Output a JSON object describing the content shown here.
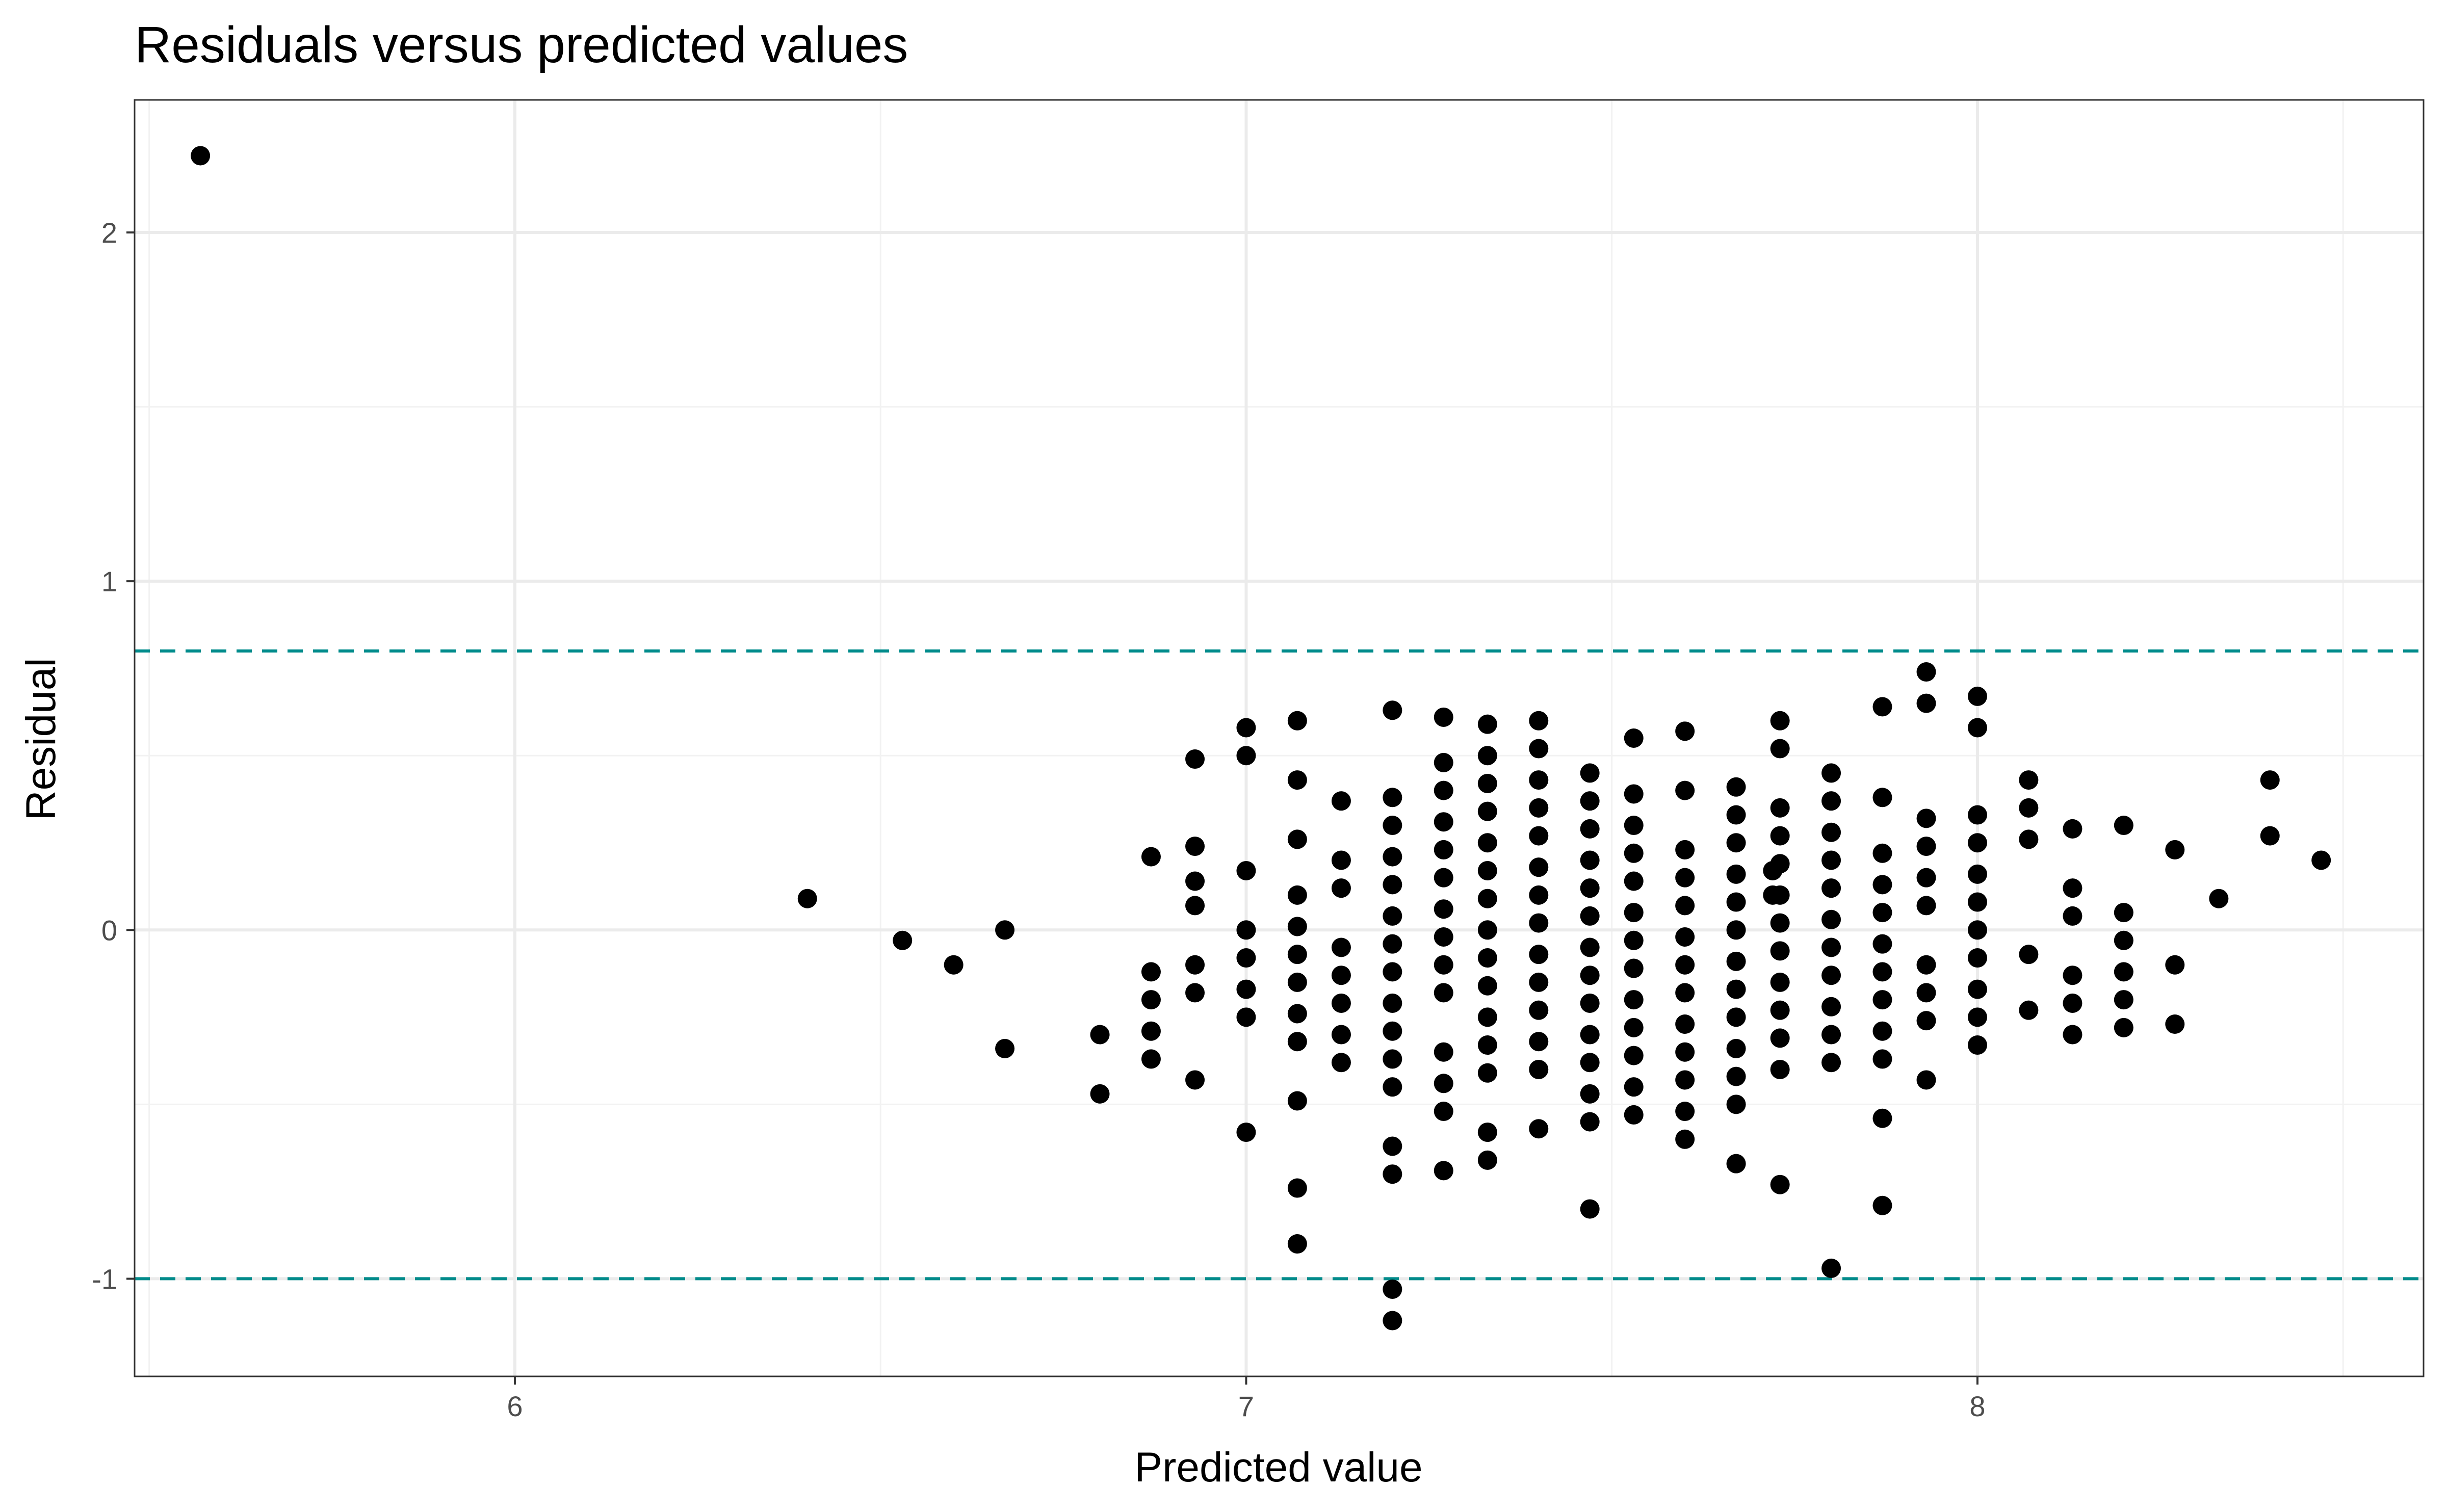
{
  "chart_data": {
    "type": "scatter",
    "title": "Residuals versus predicted values",
    "xlabel": "Predicted value",
    "ylabel": "Residual",
    "xlim": [
      5.48,
      8.61
    ],
    "ylim": [
      -1.28,
      2.38
    ],
    "x_ticks": [
      6,
      7,
      8
    ],
    "x_tick_labels": [
      "6",
      "7",
      "8"
    ],
    "y_ticks": [
      -1,
      0,
      1,
      2
    ],
    "y_tick_labels": [
      "-1",
      "0",
      "1",
      "2"
    ],
    "grid": true,
    "reference_lines": [
      {
        "y": 0.8,
        "style": "dashed",
        "color": "#008b8b"
      },
      {
        "y": -1.0,
        "style": "dashed",
        "color": "#008b8b"
      }
    ],
    "point_color": "#000000",
    "points": [
      [
        5.57,
        2.22
      ],
      [
        6.4,
        0.09
      ],
      [
        6.53,
        -0.03
      ],
      [
        6.6,
        -0.1
      ],
      [
        6.67,
        0.0
      ],
      [
        6.67,
        -0.34
      ],
      [
        6.8,
        -0.3
      ],
      [
        6.8,
        -0.47
      ],
      [
        6.87,
        0.21
      ],
      [
        6.87,
        -0.12
      ],
      [
        6.87,
        -0.2
      ],
      [
        6.87,
        -0.29
      ],
      [
        6.87,
        -0.37
      ],
      [
        6.93,
        0.49
      ],
      [
        6.93,
        0.24
      ],
      [
        6.93,
        0.14
      ],
      [
        6.93,
        0.07
      ],
      [
        6.93,
        -0.1
      ],
      [
        6.93,
        -0.18
      ],
      [
        6.93,
        -0.43
      ],
      [
        7.0,
        0.58
      ],
      [
        7.0,
        0.5
      ],
      [
        7.0,
        0.17
      ],
      [
        7.0,
        0.0
      ],
      [
        7.0,
        -0.08
      ],
      [
        7.0,
        -0.17
      ],
      [
        7.0,
        -0.25
      ],
      [
        7.0,
        -0.58
      ],
      [
        7.07,
        0.6
      ],
      [
        7.07,
        0.43
      ],
      [
        7.07,
        0.26
      ],
      [
        7.07,
        0.1
      ],
      [
        7.07,
        0.01
      ],
      [
        7.07,
        -0.07
      ],
      [
        7.07,
        -0.15
      ],
      [
        7.07,
        -0.24
      ],
      [
        7.07,
        -0.32
      ],
      [
        7.07,
        -0.49
      ],
      [
        7.07,
        -0.74
      ],
      [
        7.07,
        -0.9
      ],
      [
        7.13,
        0.37
      ],
      [
        7.13,
        0.2
      ],
      [
        7.13,
        0.12
      ],
      [
        7.13,
        -0.05
      ],
      [
        7.13,
        -0.13
      ],
      [
        7.13,
        -0.21
      ],
      [
        7.13,
        -0.3
      ],
      [
        7.13,
        -0.38
      ],
      [
        7.2,
        0.63
      ],
      [
        7.2,
        0.38
      ],
      [
        7.2,
        0.3
      ],
      [
        7.2,
        0.21
      ],
      [
        7.2,
        0.13
      ],
      [
        7.2,
        0.04
      ],
      [
        7.2,
        -0.04
      ],
      [
        7.2,
        -0.12
      ],
      [
        7.2,
        -0.21
      ],
      [
        7.2,
        -0.29
      ],
      [
        7.2,
        -0.37
      ],
      [
        7.2,
        -0.45
      ],
      [
        7.2,
        -0.62
      ],
      [
        7.2,
        -0.7
      ],
      [
        7.2,
        -1.03
      ],
      [
        7.2,
        -1.12
      ],
      [
        7.27,
        0.61
      ],
      [
        7.27,
        0.48
      ],
      [
        7.27,
        0.4
      ],
      [
        7.27,
        0.31
      ],
      [
        7.27,
        0.23
      ],
      [
        7.27,
        0.15
      ],
      [
        7.27,
        0.06
      ],
      [
        7.27,
        -0.02
      ],
      [
        7.27,
        -0.1
      ],
      [
        7.27,
        -0.18
      ],
      [
        7.27,
        -0.35
      ],
      [
        7.27,
        -0.44
      ],
      [
        7.27,
        -0.52
      ],
      [
        7.27,
        -0.69
      ],
      [
        7.33,
        0.59
      ],
      [
        7.33,
        0.5
      ],
      [
        7.33,
        0.42
      ],
      [
        7.33,
        0.34
      ],
      [
        7.33,
        0.25
      ],
      [
        7.33,
        0.17
      ],
      [
        7.33,
        0.09
      ],
      [
        7.33,
        0.0
      ],
      [
        7.33,
        -0.08
      ],
      [
        7.33,
        -0.16
      ],
      [
        7.33,
        -0.25
      ],
      [
        7.33,
        -0.33
      ],
      [
        7.33,
        -0.41
      ],
      [
        7.33,
        -0.58
      ],
      [
        7.33,
        -0.66
      ],
      [
        7.4,
        0.6
      ],
      [
        7.4,
        0.52
      ],
      [
        7.4,
        0.43
      ],
      [
        7.4,
        0.35
      ],
      [
        7.4,
        0.27
      ],
      [
        7.4,
        0.18
      ],
      [
        7.4,
        0.1
      ],
      [
        7.4,
        0.02
      ],
      [
        7.4,
        -0.07
      ],
      [
        7.4,
        -0.15
      ],
      [
        7.4,
        -0.23
      ],
      [
        7.4,
        -0.32
      ],
      [
        7.4,
        -0.4
      ],
      [
        7.4,
        -0.57
      ],
      [
        7.47,
        0.45
      ],
      [
        7.47,
        0.37
      ],
      [
        7.47,
        0.29
      ],
      [
        7.47,
        0.2
      ],
      [
        7.47,
        0.12
      ],
      [
        7.47,
        0.04
      ],
      [
        7.47,
        -0.05
      ],
      [
        7.47,
        -0.13
      ],
      [
        7.47,
        -0.21
      ],
      [
        7.47,
        -0.3
      ],
      [
        7.47,
        -0.38
      ],
      [
        7.47,
        -0.47
      ],
      [
        7.47,
        -0.55
      ],
      [
        7.47,
        -0.8
      ],
      [
        7.53,
        0.55
      ],
      [
        7.53,
        0.39
      ],
      [
        7.53,
        0.3
      ],
      [
        7.53,
        0.22
      ],
      [
        7.53,
        0.14
      ],
      [
        7.53,
        0.05
      ],
      [
        7.53,
        -0.03
      ],
      [
        7.53,
        -0.11
      ],
      [
        7.53,
        -0.2
      ],
      [
        7.53,
        -0.28
      ],
      [
        7.53,
        -0.36
      ],
      [
        7.53,
        -0.45
      ],
      [
        7.53,
        -0.53
      ],
      [
        7.6,
        0.57
      ],
      [
        7.6,
        0.4
      ],
      [
        7.6,
        0.23
      ],
      [
        7.6,
        0.15
      ],
      [
        7.6,
        0.07
      ],
      [
        7.6,
        -0.02
      ],
      [
        7.6,
        -0.1
      ],
      [
        7.6,
        -0.18
      ],
      [
        7.6,
        -0.27
      ],
      [
        7.6,
        -0.35
      ],
      [
        7.6,
        -0.43
      ],
      [
        7.6,
        -0.52
      ],
      [
        7.6,
        -0.6
      ],
      [
        7.67,
        0.41
      ],
      [
        7.67,
        0.33
      ],
      [
        7.67,
        0.25
      ],
      [
        7.67,
        0.16
      ],
      [
        7.67,
        0.08
      ],
      [
        7.67,
        0.0
      ],
      [
        7.67,
        -0.09
      ],
      [
        7.67,
        -0.17
      ],
      [
        7.67,
        -0.25
      ],
      [
        7.67,
        -0.34
      ],
      [
        7.67,
        -0.42
      ],
      [
        7.67,
        -0.5
      ],
      [
        7.67,
        -0.67
      ],
      [
        7.72,
        0.17
      ],
      [
        7.72,
        0.1
      ],
      [
        7.73,
        0.6
      ],
      [
        7.73,
        0.52
      ],
      [
        7.73,
        0.35
      ],
      [
        7.73,
        0.27
      ],
      [
        7.73,
        0.19
      ],
      [
        7.73,
        0.1
      ],
      [
        7.73,
        0.02
      ],
      [
        7.73,
        -0.06
      ],
      [
        7.73,
        -0.15
      ],
      [
        7.73,
        -0.23
      ],
      [
        7.73,
        -0.31
      ],
      [
        7.73,
        -0.4
      ],
      [
        7.73,
        -0.73
      ],
      [
        7.8,
        0.45
      ],
      [
        7.8,
        0.37
      ],
      [
        7.8,
        0.28
      ],
      [
        7.8,
        0.2
      ],
      [
        7.8,
        0.12
      ],
      [
        7.8,
        0.03
      ],
      [
        7.8,
        -0.05
      ],
      [
        7.8,
        -0.13
      ],
      [
        7.8,
        -0.22
      ],
      [
        7.8,
        -0.3
      ],
      [
        7.8,
        -0.38
      ],
      [
        7.8,
        -0.97
      ],
      [
        7.87,
        0.64
      ],
      [
        7.87,
        0.38
      ],
      [
        7.87,
        0.22
      ],
      [
        7.87,
        0.13
      ],
      [
        7.87,
        0.05
      ],
      [
        7.87,
        -0.04
      ],
      [
        7.87,
        -0.12
      ],
      [
        7.87,
        -0.2
      ],
      [
        7.87,
        -0.29
      ],
      [
        7.87,
        -0.37
      ],
      [
        7.87,
        -0.54
      ],
      [
        7.87,
        -0.79
      ],
      [
        7.93,
        0.74
      ],
      [
        7.93,
        0.65
      ],
      [
        7.93,
        0.32
      ],
      [
        7.93,
        0.24
      ],
      [
        7.93,
        0.15
      ],
      [
        7.93,
        0.07
      ],
      [
        7.93,
        -0.1
      ],
      [
        7.93,
        -0.18
      ],
      [
        7.93,
        -0.26
      ],
      [
        7.93,
        -0.43
      ],
      [
        8.0,
        0.67
      ],
      [
        8.0,
        0.58
      ],
      [
        8.0,
        0.33
      ],
      [
        8.0,
        0.25
      ],
      [
        8.0,
        0.16
      ],
      [
        8.0,
        0.08
      ],
      [
        8.0,
        0.0
      ],
      [
        8.0,
        -0.08
      ],
      [
        8.0,
        -0.17
      ],
      [
        8.0,
        -0.25
      ],
      [
        8.0,
        -0.33
      ],
      [
        8.07,
        0.43
      ],
      [
        8.07,
        0.35
      ],
      [
        8.07,
        0.26
      ],
      [
        8.07,
        -0.07
      ],
      [
        8.07,
        -0.23
      ],
      [
        8.13,
        0.29
      ],
      [
        8.13,
        0.12
      ],
      [
        8.13,
        0.04
      ],
      [
        8.13,
        -0.13
      ],
      [
        8.13,
        -0.21
      ],
      [
        8.13,
        -0.3
      ],
      [
        8.2,
        0.3
      ],
      [
        8.2,
        0.05
      ],
      [
        8.2,
        -0.03
      ],
      [
        8.2,
        -0.12
      ],
      [
        8.2,
        -0.2
      ],
      [
        8.2,
        -0.28
      ],
      [
        8.27,
        0.23
      ],
      [
        8.27,
        -0.1
      ],
      [
        8.27,
        -0.27
      ],
      [
        8.33,
        0.09
      ],
      [
        8.4,
        0.43
      ],
      [
        8.4,
        0.27
      ],
      [
        8.47,
        0.2
      ]
    ]
  }
}
